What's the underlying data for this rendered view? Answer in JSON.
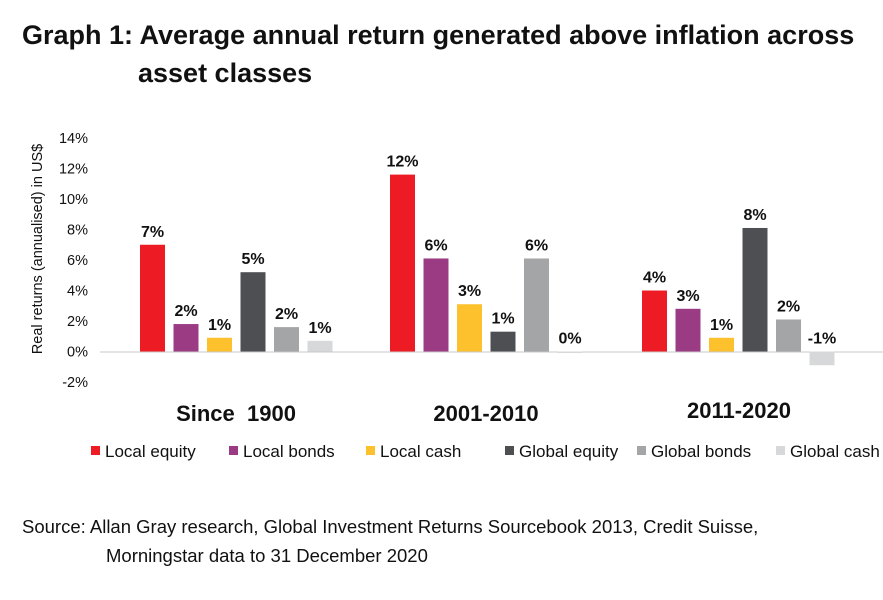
{
  "title_line1": "Graph 1: Average annual return generated above inflation across",
  "title_line2": "asset classes",
  "source_line1": "Source: Allan Gray research, Global Investment Returns Sourcebook 2013, Credit Suisse,",
  "source_line2": "Morningstar data to 31 December 2020",
  "chart_data": {
    "type": "bar",
    "title": "Graph 1: Average annual return generated above inflation across asset classes",
    "ylabel": "Real returns (annualised) in US$",
    "xlabel": "",
    "ylim": [
      -2,
      14
    ],
    "yticks": [
      -2,
      0,
      2,
      4,
      6,
      8,
      10,
      12,
      14
    ],
    "ytick_labels": [
      "-2%",
      "0%",
      "2%",
      "4%",
      "6%",
      "8%",
      "10%",
      "12%",
      "14%"
    ],
    "categories": [
      "Since  1900",
      "2001-2010",
      "2011-2020"
    ],
    "series": [
      {
        "name": "Local equity",
        "color": "#ed1c24",
        "values": [
          7.0,
          11.6,
          4.0
        ],
        "labels": [
          "7%",
          "12%",
          "4%"
        ]
      },
      {
        "name": "Local bonds",
        "color": "#9b3b84",
        "values": [
          1.8,
          6.1,
          2.8
        ],
        "labels": [
          "2%",
          "6%",
          "3%"
        ]
      },
      {
        "name": "Local cash",
        "color": "#fec12e",
        "values": [
          0.9,
          3.1,
          0.9
        ],
        "labels": [
          "1%",
          "3%",
          "1%"
        ]
      },
      {
        "name": "Global equity",
        "color": "#4d4f53",
        "values": [
          5.2,
          1.3,
          8.1
        ],
        "labels": [
          "5%",
          "1%",
          "8%"
        ]
      },
      {
        "name": "Global bonds",
        "color": "#a3a5a7",
        "values": [
          1.6,
          6.1,
          2.1
        ],
        "labels": [
          "2%",
          "6%",
          "2%"
        ]
      },
      {
        "name": "Global cash",
        "color": "#d7d8d9",
        "values": [
          0.7,
          -0.1,
          -0.9
        ],
        "labels": [
          "1%",
          "0%",
          "-1%"
        ]
      }
    ],
    "grid": false,
    "legend": "bottom"
  }
}
